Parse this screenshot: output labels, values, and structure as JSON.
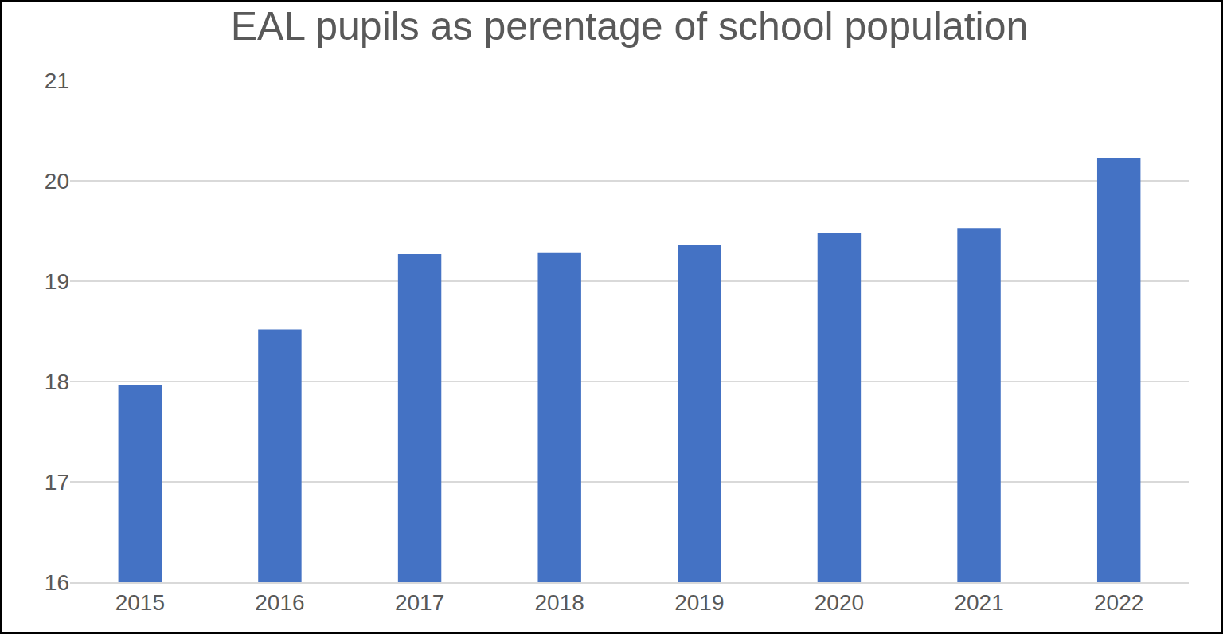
{
  "chart_data": {
    "type": "bar",
    "title": "EAL pupils as perentage of school population",
    "categories": [
      "2015",
      "2016",
      "2017",
      "2018",
      "2019",
      "2020",
      "2021",
      "2022"
    ],
    "values": [
      17.96,
      18.52,
      19.27,
      19.28,
      19.36,
      19.48,
      19.53,
      20.23
    ],
    "color": "#4472c4",
    "ylim": [
      16,
      21
    ],
    "yticks": [
      16,
      17,
      18,
      19,
      20,
      21
    ],
    "grid": true
  }
}
